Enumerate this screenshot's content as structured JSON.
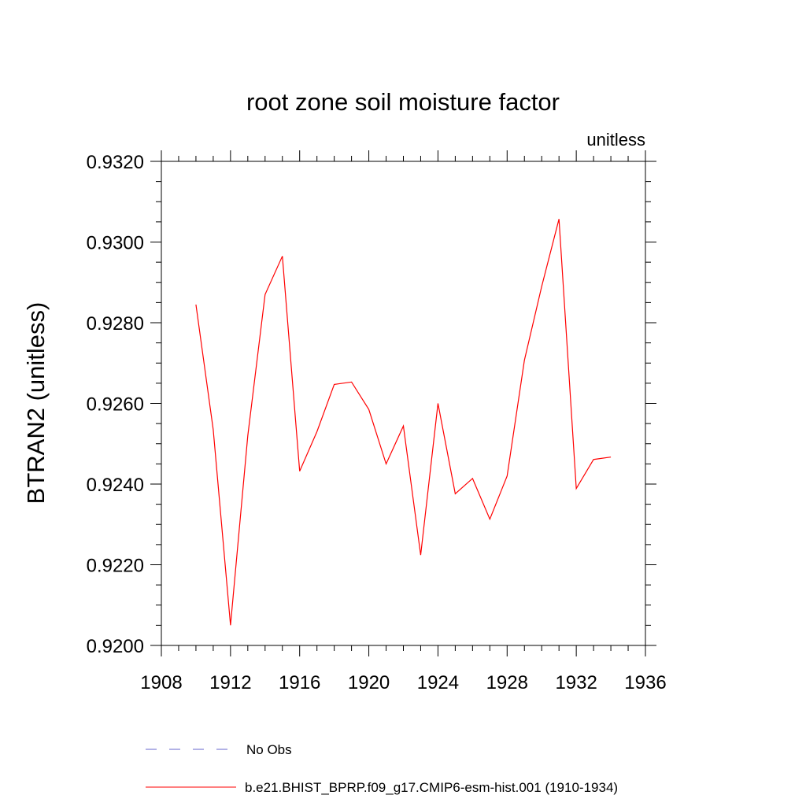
{
  "chart_data": {
    "type": "line",
    "title": "root zone soil moisture factor",
    "units_label": "unitless",
    "ylabel": "BTRAN2  (unitless)",
    "xlabel": "",
    "xlim": [
      1908,
      1936
    ],
    "ylim": [
      0.92,
      0.932
    ],
    "x_ticks": [
      1908,
      1912,
      1916,
      1920,
      1924,
      1928,
      1932,
      1936
    ],
    "x_tick_labels": [
      "1908",
      "1912",
      "1916",
      "1920",
      "1924",
      "1928",
      "1932",
      "1936"
    ],
    "y_ticks": [
      0.92,
      0.922,
      0.924,
      0.926,
      0.928,
      0.93,
      0.932
    ],
    "y_tick_labels": [
      "0.9200",
      "0.9220",
      "0.9240",
      "0.9260",
      "0.9280",
      "0.9300",
      "0.9320"
    ],
    "grid": false,
    "legend_position": "bottom",
    "series": [
      {
        "name": "b.e21.BHIST_BPRP.f09_g17.CMIP6-esm-hist.001 (1910-1934)",
        "color": "#ff0000",
        "style": "solid",
        "x": [
          1910,
          1911,
          1912,
          1913,
          1914,
          1915,
          1916,
          1917,
          1918,
          1919,
          1920,
          1921,
          1922,
          1923,
          1924,
          1925,
          1926,
          1927,
          1928,
          1929,
          1930,
          1931,
          1932,
          1933,
          1934
        ],
        "values": [
          0.92845,
          0.92535,
          0.9205,
          0.9252,
          0.9287,
          0.92965,
          0.92432,
          0.9253,
          0.92647,
          0.92653,
          0.92585,
          0.9245,
          0.92544,
          0.92224,
          0.926,
          0.92376,
          0.92414,
          0.92313,
          0.9242,
          0.92707,
          0.9289,
          0.93057,
          0.92389,
          0.92461,
          0.92467
        ]
      }
    ],
    "legend": [
      {
        "label": "No Obs",
        "color": "#6666cc",
        "style": "dashed"
      },
      {
        "label": "b.e21.BHIST_BPRP.f09_g17.CMIP6-esm-hist.001 (1910-1934)",
        "color": "#ff0000",
        "style": "solid"
      }
    ]
  }
}
